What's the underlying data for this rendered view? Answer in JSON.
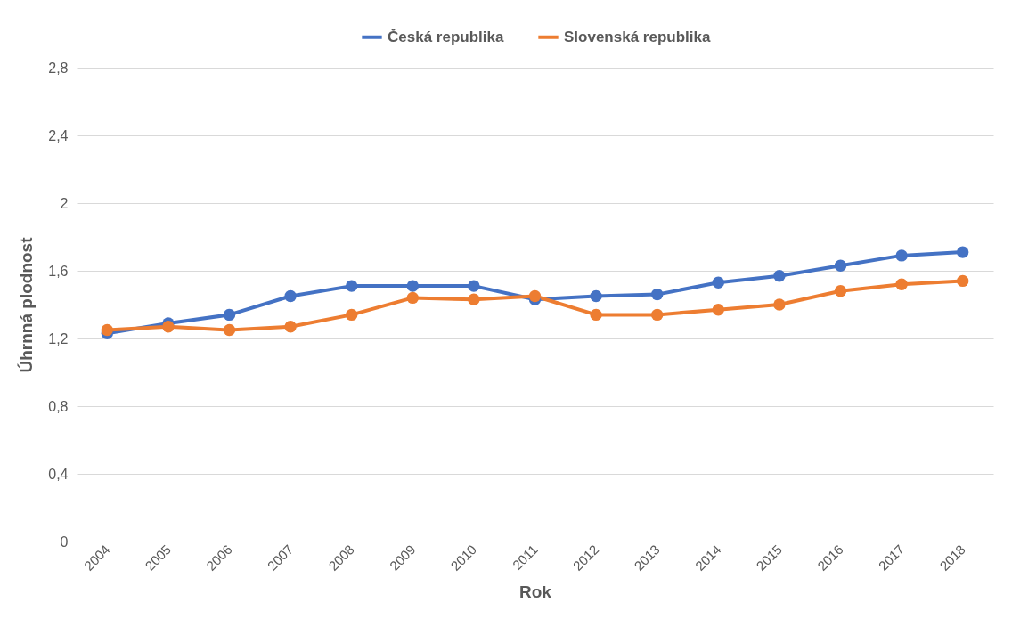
{
  "chart_data": {
    "type": "line",
    "xlabel": "Rok",
    "ylabel": "Úhrnná plodnost",
    "categories": [
      "2004",
      "2005",
      "2006",
      "2007",
      "2008",
      "2009",
      "2010",
      "2011",
      "2012",
      "2013",
      "2014",
      "2015",
      "2016",
      "2017",
      "2018"
    ],
    "series": [
      {
        "name": "Česká republika",
        "color": "#4472c4",
        "values": [
          1.23,
          1.29,
          1.34,
          1.45,
          1.51,
          1.51,
          1.51,
          1.43,
          1.45,
          1.46,
          1.53,
          1.57,
          1.63,
          1.69,
          1.71
        ]
      },
      {
        "name": "Slovenská republika",
        "color": "#ed7d31",
        "values": [
          1.25,
          1.27,
          1.25,
          1.27,
          1.34,
          1.44,
          1.43,
          1.45,
          1.34,
          1.34,
          1.37,
          1.4,
          1.48,
          1.52,
          1.54
        ]
      }
    ],
    "ylim": [
      0,
      2.8
    ],
    "yticks": [
      {
        "value": 0,
        "label": "0"
      },
      {
        "value": 0.4,
        "label": "0,4"
      },
      {
        "value": 0.8,
        "label": "0,8"
      },
      {
        "value": 1.2,
        "label": "1,2"
      },
      {
        "value": 1.6,
        "label": "1,6"
      },
      {
        "value": 2,
        "label": "2"
      },
      {
        "value": 2.4,
        "label": "2,4"
      },
      {
        "value": 2.8,
        "label": "2,8"
      }
    ],
    "grid": "y",
    "legend": "top",
    "marker": "circle",
    "line_style": "solid"
  }
}
